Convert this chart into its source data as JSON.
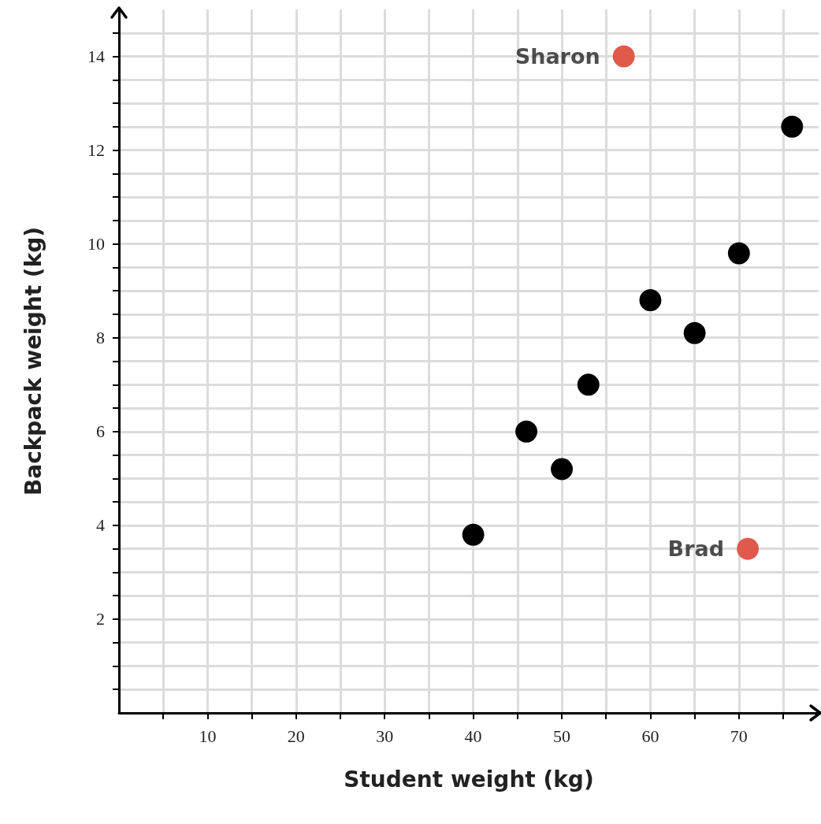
{
  "chart_data": {
    "type": "scatter",
    "xlabel": "Student weight (kg)",
    "ylabel": "Backpack weight (kg)",
    "series": [
      {
        "color": "#000000",
        "x": [
          40,
          46,
          50,
          53,
          60,
          65,
          70,
          76
        ],
        "values": [
          3.8,
          6,
          5.2,
          7,
          8.8,
          8.1,
          9.8,
          12.5
        ]
      },
      {
        "color": "#e05a4c",
        "x": [
          57,
          71
        ],
        "values": [
          14,
          3.5
        ]
      }
    ],
    "annotations": [
      {
        "text": "Sharon",
        "x": 57,
        "y": 14
      },
      {
        "text": "Brad",
        "x": 71,
        "y": 3.5
      }
    ],
    "xlim": [
      0,
      79
    ],
    "ylim": [
      0,
      15
    ],
    "xticks": [
      {
        "value": 5,
        "label": null
      },
      10,
      {
        "value": 15,
        "label": null
      },
      20,
      {
        "value": 25,
        "label": null
      },
      30,
      {
        "value": 35,
        "label": null
      },
      40,
      {
        "value": 45,
        "label": null
      },
      50,
      {
        "value": 55,
        "label": null
      },
      60,
      {
        "value": 65,
        "label": null
      },
      70,
      {
        "value": 75,
        "label": null
      }
    ],
    "yticks": [
      {
        "value": 0.5,
        "label": null
      },
      {
        "value": 1,
        "label": null
      },
      {
        "value": 1.5,
        "label": null
      },
      2,
      {
        "value": 2.5,
        "label": null
      },
      {
        "value": 3,
        "label": null
      },
      {
        "value": 3.5,
        "label": null
      },
      4,
      {
        "value": 4.5,
        "label": null
      },
      {
        "value": 5,
        "label": null
      },
      {
        "value": 5.5,
        "label": null
      },
      6,
      {
        "value": 6.5,
        "label": null
      },
      {
        "value": 7,
        "label": null
      },
      {
        "value": 7.5,
        "label": null
      },
      8,
      {
        "value": 8.5,
        "label": null
      },
      {
        "value": 9,
        "label": null
      },
      {
        "value": 9.5,
        "label": null
      },
      10,
      {
        "value": 10.5,
        "label": null
      },
      {
        "value": 11,
        "label": null
      },
      {
        "value": 11.5,
        "label": null
      },
      12,
      {
        "value": 12.5,
        "label": null
      },
      {
        "value": 13,
        "label": null
      },
      {
        "value": 13.5,
        "label": null
      },
      14,
      {
        "value": 14.5,
        "label": null
      }
    ],
    "grid": true,
    "marker": "circle"
  }
}
